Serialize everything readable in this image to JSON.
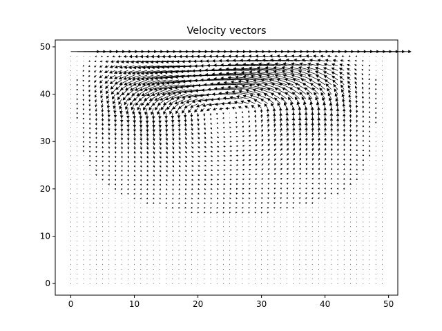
{
  "chart_data": {
    "type": "quiver",
    "title": "Velocity vectors",
    "xlabel": "",
    "ylabel": "",
    "xlim": [
      -2.45,
      51.45
    ],
    "ylim": [
      -2.45,
      51.45
    ],
    "xticks": [
      0,
      10,
      20,
      30,
      40,
      50
    ],
    "yticks": [
      0,
      10,
      20,
      30,
      40,
      50
    ],
    "grid": false,
    "legend": "none",
    "arrow_color": "#000000",
    "field": {
      "kind": "lid-driven cavity",
      "grid_x": [
        0,
        49
      ],
      "grid_y": [
        0,
        49
      ],
      "step": 1,
      "lid_row_y": 49,
      "lid_velocity": [
        1.0,
        0.0
      ],
      "vortex_center": [
        25,
        36
      ],
      "quiver_scale_data_units_per_speed": 4.5
    }
  }
}
